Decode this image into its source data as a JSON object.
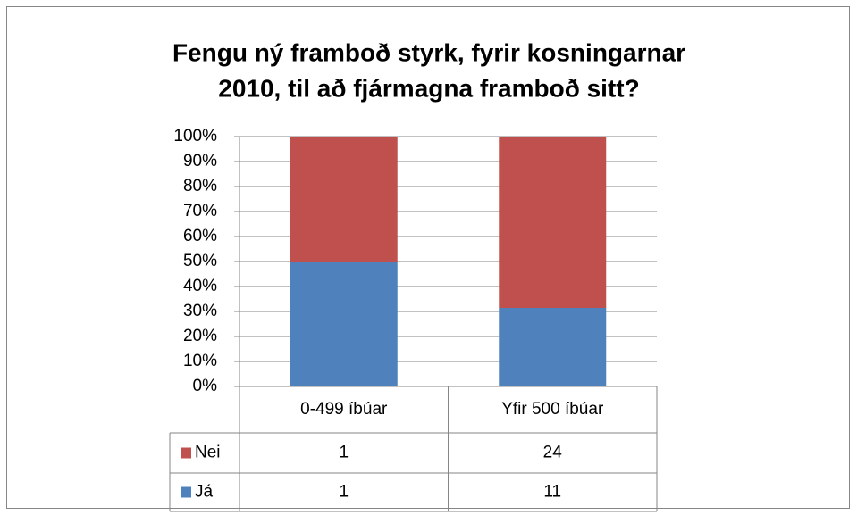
{
  "chart_data": {
    "type": "bar",
    "stacking": "percent",
    "title": [
      "Fengu ný framboð styrk, fyrir kosningarnar",
      "2010, til að fjármagna framboð sitt?"
    ],
    "categories": [
      "0-499 íbúar",
      "Yfir 500 íbúar"
    ],
    "series": [
      {
        "name": "Já",
        "color": "#4f81bd",
        "values": [
          1,
          11
        ]
      },
      {
        "name": "Nei",
        "color": "#c0504d",
        "values": [
          1,
          24
        ]
      }
    ],
    "ylim": [
      0,
      100
    ],
    "yticks": [
      {
        "value": 0,
        "label": "0%"
      },
      {
        "value": 10,
        "label": "10%"
      },
      {
        "value": 20,
        "label": "20%"
      },
      {
        "value": 30,
        "label": "30%"
      },
      {
        "value": 40,
        "label": "40%"
      },
      {
        "value": 50,
        "label": "50%"
      },
      {
        "value": 60,
        "label": "60%"
      },
      {
        "value": 70,
        "label": "70%"
      },
      {
        "value": 80,
        "label": "80%"
      },
      {
        "value": 90,
        "label": "90%"
      },
      {
        "value": 100,
        "label": "100%"
      }
    ],
    "grid": true,
    "data_table": true
  }
}
